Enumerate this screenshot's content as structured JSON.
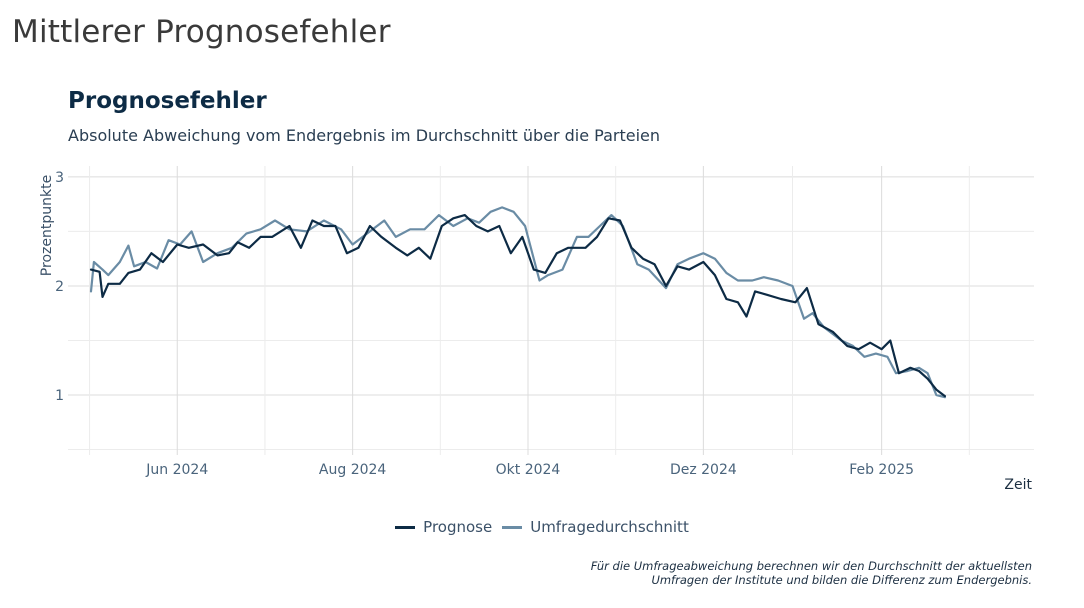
{
  "page": {
    "title": "Mittlerer Prognosefehler"
  },
  "chart_data": {
    "type": "line",
    "title": "Prognosefehler",
    "subtitle": "Absolute Abweichung vom Endergebnis im Durchschnitt über die Parteien",
    "xlabel": "Zeit",
    "ylabel": "Prozentpunkte",
    "ylim": [
      0.45,
      3.1
    ],
    "xlim": [
      "2024-04-24",
      "2025-03-26"
    ],
    "y_ticks": [
      1,
      2,
      3
    ],
    "x_ticks": [
      {
        "date": "2024-06-01",
        "label": "Jun 2024"
      },
      {
        "date": "2024-08-01",
        "label": "Aug 2024"
      },
      {
        "date": "2024-10-01",
        "label": "Okt 2024"
      },
      {
        "date": "2024-12-01",
        "label": "Dez 2024"
      },
      {
        "date": "2025-02-01",
        "label": "Feb 2025"
      }
    ],
    "grid": true,
    "legend_position": "bottom",
    "series": [
      {
        "name": "Prognose",
        "color": "#0d2b45",
        "points": [
          [
            "2024-05-02",
            2.15
          ],
          [
            "2024-05-05",
            2.13
          ],
          [
            "2024-05-06",
            1.9
          ],
          [
            "2024-05-08",
            2.02
          ],
          [
            "2024-05-12",
            2.02
          ],
          [
            "2024-05-15",
            2.12
          ],
          [
            "2024-05-19",
            2.15
          ],
          [
            "2024-05-23",
            2.3
          ],
          [
            "2024-05-27",
            2.22
          ],
          [
            "2024-06-01",
            2.38
          ],
          [
            "2024-06-05",
            2.35
          ],
          [
            "2024-06-10",
            2.38
          ],
          [
            "2024-06-15",
            2.28
          ],
          [
            "2024-06-19",
            2.3
          ],
          [
            "2024-06-22",
            2.4
          ],
          [
            "2024-06-26",
            2.35
          ],
          [
            "2024-06-30",
            2.45
          ],
          [
            "2024-07-04",
            2.45
          ],
          [
            "2024-07-10",
            2.55
          ],
          [
            "2024-07-14",
            2.35
          ],
          [
            "2024-07-18",
            2.6
          ],
          [
            "2024-07-22",
            2.55
          ],
          [
            "2024-07-26",
            2.55
          ],
          [
            "2024-07-30",
            2.3
          ],
          [
            "2024-08-03",
            2.35
          ],
          [
            "2024-08-07",
            2.55
          ],
          [
            "2024-08-11",
            2.45
          ],
          [
            "2024-08-16",
            2.35
          ],
          [
            "2024-08-20",
            2.28
          ],
          [
            "2024-08-24",
            2.35
          ],
          [
            "2024-08-28",
            2.25
          ],
          [
            "2024-09-01",
            2.55
          ],
          [
            "2024-09-05",
            2.62
          ],
          [
            "2024-09-09",
            2.65
          ],
          [
            "2024-09-13",
            2.55
          ],
          [
            "2024-09-17",
            2.5
          ],
          [
            "2024-09-21",
            2.55
          ],
          [
            "2024-09-25",
            2.3
          ],
          [
            "2024-09-29",
            2.45
          ],
          [
            "2024-10-03",
            2.15
          ],
          [
            "2024-10-07",
            2.12
          ],
          [
            "2024-10-11",
            2.3
          ],
          [
            "2024-10-15",
            2.35
          ],
          [
            "2024-10-21",
            2.35
          ],
          [
            "2024-10-25",
            2.45
          ],
          [
            "2024-10-29",
            2.62
          ],
          [
            "2024-11-02",
            2.6
          ],
          [
            "2024-11-06",
            2.35
          ],
          [
            "2024-11-10",
            2.25
          ],
          [
            "2024-11-14",
            2.2
          ],
          [
            "2024-11-18",
            2.0
          ],
          [
            "2024-11-22",
            2.18
          ],
          [
            "2024-11-26",
            2.15
          ],
          [
            "2024-12-01",
            2.22
          ],
          [
            "2024-12-05",
            2.1
          ],
          [
            "2024-12-09",
            1.88
          ],
          [
            "2024-12-13",
            1.85
          ],
          [
            "2024-12-16",
            1.72
          ],
          [
            "2024-12-19",
            1.95
          ],
          [
            "2024-12-23",
            1.92
          ],
          [
            "2024-12-28",
            1.88
          ],
          [
            "2025-01-02",
            1.85
          ],
          [
            "2025-01-06",
            1.98
          ],
          [
            "2025-01-10",
            1.65
          ],
          [
            "2025-01-15",
            1.58
          ],
          [
            "2025-01-20",
            1.45
          ],
          [
            "2025-01-24",
            1.42
          ],
          [
            "2025-01-28",
            1.48
          ],
          [
            "2025-02-01",
            1.42
          ],
          [
            "2025-02-04",
            1.5
          ],
          [
            "2025-02-07",
            1.2
          ],
          [
            "2025-02-11",
            1.25
          ],
          [
            "2025-02-14",
            1.22
          ],
          [
            "2025-02-17",
            1.15
          ],
          [
            "2025-02-20",
            1.05
          ],
          [
            "2025-02-23",
            0.99
          ]
        ]
      },
      {
        "name": "Umfragedurchschnitt",
        "color": "#6a8ca5",
        "points": [
          [
            "2024-05-02",
            1.95
          ],
          [
            "2024-05-03",
            2.22
          ],
          [
            "2024-05-06",
            2.15
          ],
          [
            "2024-05-08",
            2.1
          ],
          [
            "2024-05-12",
            2.22
          ],
          [
            "2024-05-15",
            2.37
          ],
          [
            "2024-05-17",
            2.18
          ],
          [
            "2024-05-21",
            2.22
          ],
          [
            "2024-05-25",
            2.16
          ],
          [
            "2024-05-29",
            2.42
          ],
          [
            "2024-06-02",
            2.38
          ],
          [
            "2024-06-06",
            2.5
          ],
          [
            "2024-06-10",
            2.22
          ],
          [
            "2024-06-15",
            2.3
          ],
          [
            "2024-06-20",
            2.35
          ],
          [
            "2024-06-25",
            2.48
          ],
          [
            "2024-06-30",
            2.52
          ],
          [
            "2024-07-05",
            2.6
          ],
          [
            "2024-07-10",
            2.52
          ],
          [
            "2024-07-16",
            2.5
          ],
          [
            "2024-07-22",
            2.6
          ],
          [
            "2024-07-28",
            2.52
          ],
          [
            "2024-08-01",
            2.38
          ],
          [
            "2024-08-07",
            2.5
          ],
          [
            "2024-08-12",
            2.6
          ],
          [
            "2024-08-16",
            2.45
          ],
          [
            "2024-08-21",
            2.52
          ],
          [
            "2024-08-26",
            2.52
          ],
          [
            "2024-08-31",
            2.65
          ],
          [
            "2024-09-05",
            2.55
          ],
          [
            "2024-09-10",
            2.62
          ],
          [
            "2024-09-14",
            2.58
          ],
          [
            "2024-09-18",
            2.68
          ],
          [
            "2024-09-22",
            2.72
          ],
          [
            "2024-09-26",
            2.68
          ],
          [
            "2024-09-30",
            2.55
          ],
          [
            "2024-10-05",
            2.05
          ],
          [
            "2024-10-08",
            2.1
          ],
          [
            "2024-10-13",
            2.15
          ],
          [
            "2024-10-18",
            2.45
          ],
          [
            "2024-10-22",
            2.45
          ],
          [
            "2024-10-26",
            2.55
          ],
          [
            "2024-10-30",
            2.65
          ],
          [
            "2024-11-03",
            2.55
          ],
          [
            "2024-11-08",
            2.2
          ],
          [
            "2024-11-12",
            2.15
          ],
          [
            "2024-11-18",
            1.98
          ],
          [
            "2024-11-22",
            2.2
          ],
          [
            "2024-11-26",
            2.25
          ],
          [
            "2024-12-01",
            2.3
          ],
          [
            "2024-12-05",
            2.25
          ],
          [
            "2024-12-09",
            2.12
          ],
          [
            "2024-12-13",
            2.05
          ],
          [
            "2024-12-18",
            2.05
          ],
          [
            "2024-12-22",
            2.08
          ],
          [
            "2024-12-27",
            2.05
          ],
          [
            "2025-01-01",
            2.0
          ],
          [
            "2025-01-05",
            1.7
          ],
          [
            "2025-01-08",
            1.75
          ],
          [
            "2025-01-12",
            1.62
          ],
          [
            "2025-01-18",
            1.5
          ],
          [
            "2025-01-22",
            1.45
          ],
          [
            "2025-01-26",
            1.35
          ],
          [
            "2025-01-30",
            1.38
          ],
          [
            "2025-02-03",
            1.35
          ],
          [
            "2025-02-06",
            1.2
          ],
          [
            "2025-02-10",
            1.22
          ],
          [
            "2025-02-14",
            1.25
          ],
          [
            "2025-02-17",
            1.2
          ],
          [
            "2025-02-20",
            1.0
          ],
          [
            "2025-02-23",
            0.98
          ]
        ]
      }
    ]
  },
  "footnote": {
    "line1": "Für die Umfrageabweichung berechnen wir den Durchschnitt der aktuellsten",
    "line2": "Umfragen der Institute und bilden die Differenz zum Endergebnis."
  }
}
